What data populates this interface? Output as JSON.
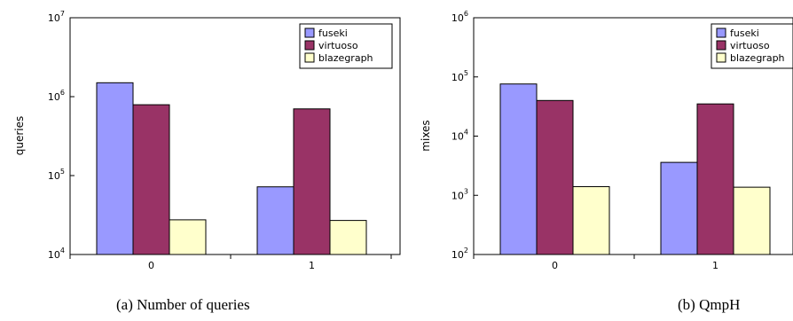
{
  "colors": {
    "fuseki": "#9999ff",
    "virtuoso": "#993366",
    "blazegraph": "#ffffcc",
    "frame": "#000000"
  },
  "chart_data": [
    {
      "type": "bar",
      "ylabel": "queries",
      "yscale": "log",
      "ylim": [
        10000,
        10000000
      ],
      "yticks": [
        {
          "base": "10",
          "exp": "4"
        },
        {
          "base": "10",
          "exp": "5"
        },
        {
          "base": "10",
          "exp": "6"
        },
        {
          "base": "10",
          "exp": "7"
        }
      ],
      "categories": [
        "0",
        "1"
      ],
      "legend_position": "top-right",
      "series": [
        {
          "name": "fuseki",
          "values": [
            1500000,
            72000
          ]
        },
        {
          "name": "virtuoso",
          "values": [
            790000,
            700000
          ]
        },
        {
          "name": "blazegraph",
          "values": [
            27500,
            27000
          ]
        }
      ],
      "caption": "(a) Number of queries"
    },
    {
      "type": "bar",
      "ylabel": "mixes",
      "yscale": "log",
      "ylim": [
        100,
        1000000
      ],
      "yticks": [
        {
          "base": "10",
          "exp": "2"
        },
        {
          "base": "10",
          "exp": "3"
        },
        {
          "base": "10",
          "exp": "4"
        },
        {
          "base": "10",
          "exp": "5"
        },
        {
          "base": "10",
          "exp": "6"
        }
      ],
      "categories": [
        "0",
        "1"
      ],
      "legend_position": "top-right",
      "series": [
        {
          "name": "fuseki",
          "values": [
            76000,
            3600
          ]
        },
        {
          "name": "virtuoso",
          "values": [
            40000,
            35000
          ]
        },
        {
          "name": "blazegraph",
          "values": [
            1400,
            1370
          ]
        }
      ],
      "caption": "(b) QmpH"
    }
  ]
}
